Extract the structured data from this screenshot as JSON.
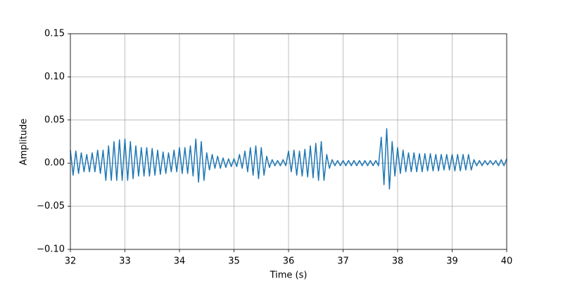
{
  "chart_data": {
    "type": "line",
    "xlabel": "Time (s)",
    "ylabel": "Amplitude",
    "color": "#1f77b4",
    "grid": true,
    "xlim": [
      32,
      40
    ],
    "xticks": [
      32,
      33,
      34,
      35,
      36,
      37,
      38,
      39,
      40
    ],
    "ylim": [
      -0.1,
      0.15
    ],
    "yticks": [
      {
        "value": -0.1,
        "label": "−0.10"
      },
      {
        "value": -0.05,
        "label": "−0.05"
      },
      {
        "value": 0,
        "label": "0.00"
      },
      {
        "value": 0.05,
        "label": "0.05"
      },
      {
        "value": 0.1,
        "label": "0.10"
      },
      {
        "value": 0.15,
        "label": "0.15"
      }
    ],
    "x": [
      32,
      32.05,
      32.1,
      32.15,
      32.2,
      32.25,
      32.3,
      32.35,
      32.4,
      32.45,
      32.5,
      32.55,
      32.6,
      32.65,
      32.7,
      32.75,
      32.8,
      32.85,
      32.9,
      32.95,
      33,
      33.05,
      33.1,
      33.15,
      33.2,
      33.25,
      33.3,
      33.35,
      33.4,
      33.45,
      33.5,
      33.55,
      33.6,
      33.65,
      33.7,
      33.75,
      33.8,
      33.85,
      33.9,
      33.95,
      34,
      34.05,
      34.1,
      34.15,
      34.2,
      34.25,
      34.3,
      34.35,
      34.4,
      34.45,
      34.5,
      34.55,
      34.6,
      34.65,
      34.7,
      34.75,
      34.8,
      34.85,
      34.9,
      34.95,
      35,
      35.05,
      35.1,
      35.15,
      35.2,
      35.25,
      35.3,
      35.35,
      35.4,
      35.45,
      35.5,
      35.55,
      35.6,
      35.65,
      35.7,
      35.75,
      35.8,
      35.85,
      35.9,
      35.95,
      36,
      36.05,
      36.1,
      36.15,
      36.2,
      36.25,
      36.3,
      36.35,
      36.4,
      36.45,
      36.5,
      36.55,
      36.6,
      36.65,
      36.7,
      36.75,
      36.8,
      36.85,
      36.9,
      36.95,
      37,
      37.05,
      37.1,
      37.15,
      37.2,
      37.25,
      37.3,
      37.35,
      37.4,
      37.45,
      37.5,
      37.55,
      37.6,
      37.65,
      37.7,
      37.75,
      37.8,
      37.85,
      37.9,
      37.95,
      38,
      38.05,
      38.1,
      38.15,
      38.2,
      38.25,
      38.3,
      38.35,
      38.4,
      38.45,
      38.5,
      38.55,
      38.6,
      38.65,
      38.7,
      38.75,
      38.8,
      38.85,
      38.9,
      38.95,
      39,
      39.05,
      39.1,
      39.15,
      39.2,
      39.25,
      39.3,
      39.35,
      39.4,
      39.45,
      39.5,
      39.55,
      39.6,
      39.65,
      39.7,
      39.75,
      39.8,
      39.85,
      39.9,
      39.95,
      40
    ],
    "values": [
      0.015,
      -0.014,
      0.014,
      -0.012,
      0.012,
      -0.01,
      0.01,
      -0.01,
      0.012,
      -0.01,
      0.015,
      -0.012,
      0.015,
      -0.02,
      0.02,
      -0.02,
      0.025,
      -0.02,
      0.027,
      -0.02,
      0.028,
      -0.02,
      0.025,
      -0.018,
      0.02,
      -0.015,
      0.018,
      -0.015,
      0.018,
      -0.015,
      0.017,
      -0.014,
      0.015,
      -0.013,
      0.013,
      -0.012,
      0.012,
      -0.01,
      0.015,
      -0.01,
      0.018,
      -0.012,
      0.018,
      -0.012,
      0.02,
      -0.015,
      0.028,
      -0.022,
      0.025,
      -0.02,
      0.012,
      -0.008,
      0.01,
      -0.006,
      0.008,
      -0.006,
      0.006,
      -0.005,
      0.005,
      -0.004,
      0.005,
      -0.004,
      0.01,
      -0.006,
      0.014,
      -0.01,
      0.018,
      -0.014,
      0.02,
      -0.018,
      0.018,
      -0.014,
      0.008,
      -0.005,
      0.004,
      -0.003,
      0.003,
      -0.003,
      0.004,
      -0.003,
      0.014,
      -0.01,
      0.015,
      -0.014,
      0.014,
      -0.015,
      0.016,
      -0.016,
      0.02,
      -0.017,
      0.023,
      -0.02,
      0.025,
      -0.02,
      0.01,
      -0.006,
      0.004,
      -0.003,
      0.003,
      -0.003,
      0.003,
      -0.003,
      0.003,
      -0.003,
      0.003,
      -0.003,
      0.003,
      -0.003,
      0.003,
      -0.003,
      0.003,
      -0.003,
      0.003,
      -0.003,
      0.03,
      -0.025,
      0.04,
      -0.03,
      0.025,
      -0.015,
      0.018,
      -0.012,
      0.015,
      -0.01,
      0.012,
      -0.01,
      0.012,
      -0.01,
      0.011,
      -0.01,
      0.011,
      -0.009,
      0.011,
      -0.009,
      0.01,
      -0.009,
      0.01,
      -0.008,
      0.01,
      -0.008,
      0.01,
      -0.009,
      0.01,
      -0.009,
      0.01,
      -0.008,
      0.01,
      -0.008,
      0.004,
      -0.003,
      0.003,
      -0.003,
      0.003,
      -0.002,
      0.003,
      -0.002,
      0.003,
      -0.003,
      0.004,
      -0.003,
      0.005
    ]
  }
}
